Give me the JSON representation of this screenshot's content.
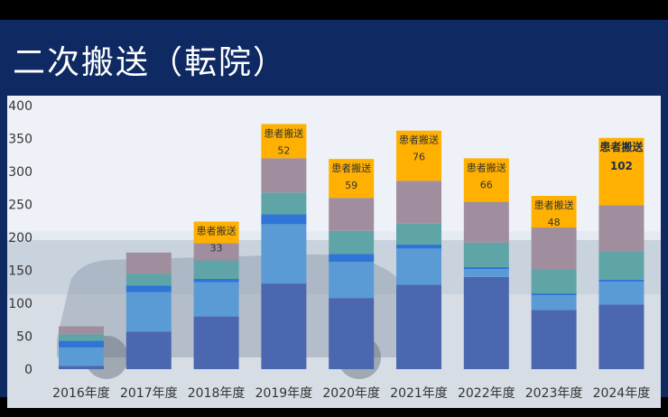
{
  "title": "二次搬送（転院）",
  "chart_data": {
    "type": "bar",
    "stacked": true,
    "categories": [
      "2016年度",
      "2017年度",
      "2018年度",
      "2019年度",
      "2020年度",
      "2021年度",
      "2022年度",
      "2023年度",
      "2024年度"
    ],
    "ylim": [
      0,
      400
    ],
    "yticks": [
      0,
      50,
      100,
      150,
      200,
      250,
      300,
      350,
      400
    ],
    "grid": false,
    "series": [
      {
        "color": "#4a67b0",
        "values": [
          5,
          57,
          80,
          130,
          108,
          128,
          140,
          90,
          98
        ]
      },
      {
        "color": "#5b9bd5",
        "values": [
          28,
          60,
          52,
          90,
          55,
          55,
          12,
          22,
          35
        ]
      },
      {
        "color": "#2e75d6",
        "values": [
          10,
          10,
          5,
          15,
          12,
          6,
          3,
          3,
          3
        ]
      },
      {
        "color": "#5fa5a7",
        "values": [
          10,
          18,
          28,
          33,
          35,
          32,
          37,
          37,
          43
        ]
      },
      {
        "color": "#a08e9f",
        "values": [
          12,
          32,
          26,
          52,
          50,
          65,
          62,
          63,
          70
        ]
      },
      {
        "color": "#ffb000",
        "label": "患者搬送",
        "values": [
          null,
          null,
          33,
          52,
          59,
          76,
          66,
          48,
          102
        ],
        "bold_last": true
      }
    ]
  }
}
